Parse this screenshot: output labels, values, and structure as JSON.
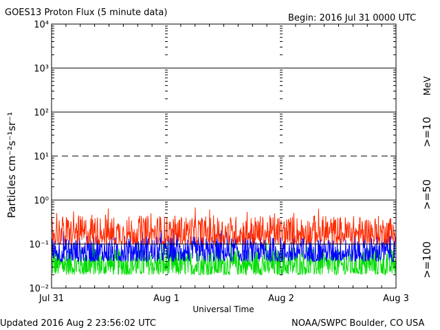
{
  "colors": {
    "background": "#ffffff",
    "axis": "#000000",
    "series_ge10": "#ff2a00",
    "series_ge50": "#0000ff",
    "series_ge100": "#00dd00"
  },
  "header": {
    "title": "GOES13 Proton Flux (5 minute data)",
    "begin": "Begin: 2016 Jul 31 0000 UTC"
  },
  "footer": {
    "updated": "Updated 2016 Aug  2 23:56:02 UTC",
    "credit": "NOAA/SWPC Boulder, CO USA"
  },
  "chart_data": {
    "type": "line",
    "title": "GOES13 Proton Flux (5 minute data)",
    "xlabel": "Universal Time",
    "ylabel": "Particles cm⁻²s⁻¹sr⁻¹",
    "yscale": "log",
    "ylim": [
      0.01,
      10000
    ],
    "xlim": [
      "2016-07-31 00:00",
      "2016-08-03 00:00"
    ],
    "x_tick_labels": [
      "Jul 31",
      "Aug 1",
      "Aug 2",
      "Aug 3"
    ],
    "y_tick_labels": [
      "10⁻²",
      "10⁻¹",
      "10⁰",
      "10¹",
      "10²",
      "10³",
      "10⁴"
    ],
    "y_tick_values": [
      0.01,
      0.1,
      1,
      10,
      100,
      1000,
      10000
    ],
    "gridlines": [
      {
        "value": 1000,
        "style": "solid"
      },
      {
        "value": 100,
        "style": "solid"
      },
      {
        "value": 10,
        "style": "dashed"
      },
      {
        "value": 1,
        "style": "solid"
      },
      {
        "value": 0.1,
        "style": "solid"
      }
    ],
    "unit_label": "MeV",
    "series": [
      {
        "name": ">=10",
        "color": "#ff2a00",
        "typical_range": [
          0.1,
          0.45
        ]
      },
      {
        "name": ">=50",
        "color": "#0000ff",
        "typical_range": [
          0.04,
          0.15
        ]
      },
      {
        "name": ">=100",
        "color": "#00dd00",
        "typical_range": [
          0.02,
          0.08
        ]
      }
    ]
  }
}
